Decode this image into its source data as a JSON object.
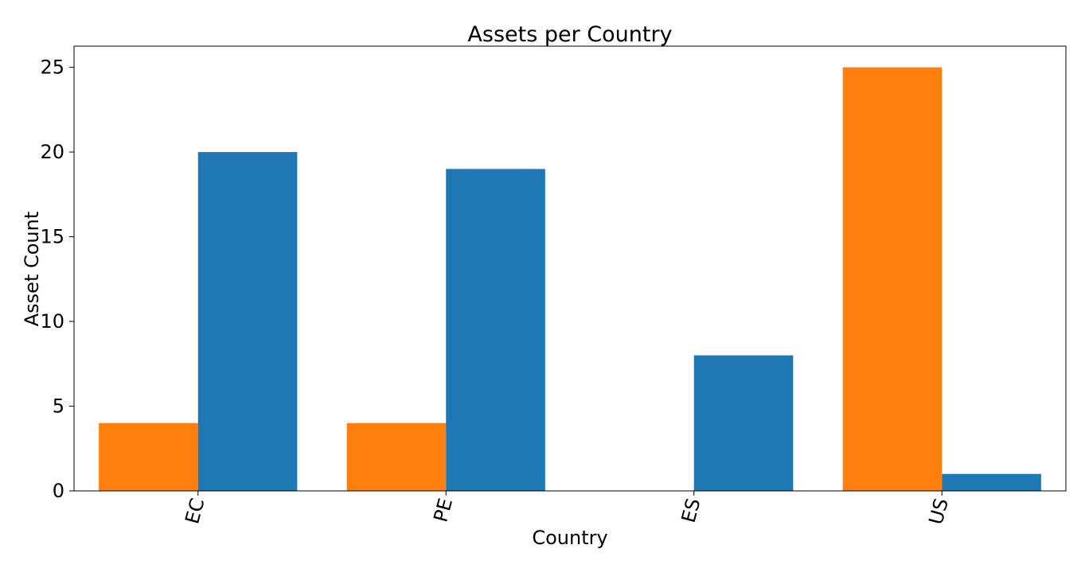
{
  "chart_data": {
    "type": "bar",
    "title": "Assets per Country",
    "xlabel": "Country",
    "ylabel": "Asset Count",
    "categories": [
      "EC",
      "PE",
      "ES",
      "US"
    ],
    "series": [
      {
        "values": [
          4,
          4,
          0,
          25
        ],
        "color": "#ff7f0e"
      },
      {
        "values": [
          20,
          19,
          8,
          1
        ],
        "color": "#1f77b4"
      }
    ],
    "ylim": [
      0,
      26.25
    ],
    "yticks": [
      0,
      5,
      10,
      15,
      20,
      25
    ],
    "xtick_rotation": 75,
    "grid": false,
    "legend": "none"
  }
}
